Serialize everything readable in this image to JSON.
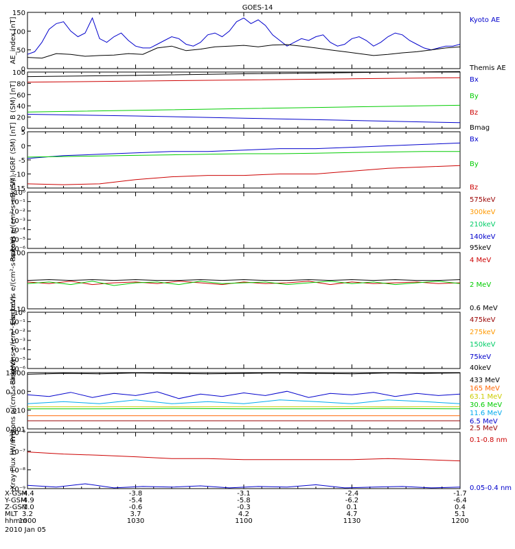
{
  "title": "GOES-14",
  "x_axis": {
    "tick_times": [
      "1000",
      "1030",
      "1100",
      "1130",
      "1200"
    ],
    "row_labels": [
      "X-GSM",
      "Y-GSM",
      "Z-GSM",
      "MLT",
      "hhmm"
    ],
    "rows": [
      [
        "-4.4",
        "-3.8",
        "-3.1",
        "-2.4",
        "-1.7"
      ],
      [
        "-4.9",
        "-5.4",
        "-5.8",
        "-6.2",
        "-6.4"
      ],
      [
        "-1.0",
        "-0.6",
        "-0.3",
        "0.1",
        "0.4"
      ],
      [
        "3.2",
        "3.7",
        "4.2",
        "4.7",
        "5.1"
      ],
      [
        "1000",
        "1030",
        "1100",
        "1130",
        "1200"
      ]
    ],
    "date": "2010 Jan 05"
  },
  "colors": {
    "black": "#000000",
    "blue": "#0000cc",
    "green": "#00cc00",
    "red": "#cc0000",
    "orange": "#ff9900",
    "cyan": "#00aaee",
    "darkred": "#990000",
    "yellow": "#cccc00"
  },
  "chart_data": [
    {
      "type": "line",
      "ylabel": "AE_index [nT]",
      "ylim": [
        0,
        150
      ],
      "yticks": [
        "0",
        "50",
        "100",
        "150"
      ],
      "ylog": false,
      "series": [
        {
          "name": "Kyoto AE",
          "color": "#0000cc",
          "x": [
            0,
            2,
            4,
            6,
            8,
            10,
            12,
            14,
            16,
            18,
            20,
            22,
            24,
            26,
            28,
            30,
            32,
            34,
            36,
            38,
            40,
            42,
            44,
            46,
            48,
            50,
            52,
            54,
            56,
            58,
            60,
            62,
            64,
            66,
            68,
            70,
            72,
            74,
            76,
            78,
            80,
            82,
            84,
            86,
            88,
            90,
            92,
            94,
            96,
            98,
            100,
            102,
            104,
            106,
            108,
            110,
            112,
            114,
            116,
            118,
            120
          ],
          "values": [
            38,
            45,
            70,
            105,
            120,
            125,
            100,
            85,
            95,
            135,
            80,
            70,
            85,
            95,
            75,
            60,
            55,
            55,
            65,
            75,
            85,
            80,
            65,
            60,
            70,
            90,
            95,
            85,
            100,
            125,
            135,
            120,
            130,
            115,
            90,
            75,
            60,
            70,
            80,
            75,
            85,
            90,
            70,
            60,
            65,
            80,
            85,
            75,
            60,
            70,
            85,
            95,
            90,
            75,
            65,
            55,
            50,
            55,
            60,
            60,
            65
          ]
        },
        {
          "name": "Themis AE",
          "color": "#000000",
          "x": [
            0,
            4,
            8,
            12,
            16,
            20,
            24,
            28,
            32,
            36,
            40,
            44,
            48,
            52,
            56,
            60,
            64,
            68,
            72,
            76,
            80,
            84,
            88,
            92,
            96,
            100,
            104,
            108,
            112,
            116,
            120
          ],
          "values": [
            30,
            28,
            40,
            38,
            33,
            35,
            36,
            40,
            38,
            55,
            60,
            48,
            52,
            58,
            60,
            62,
            58,
            63,
            64,
            60,
            55,
            50,
            45,
            40,
            35,
            38,
            42,
            45,
            50,
            55,
            58
          ]
        }
      ]
    },
    {
      "type": "line",
      "ylabel": "B (SM) [nT]",
      "ylim": [
        0,
        100
      ],
      "yticks": [
        "0",
        "20",
        "40",
        "60",
        "80",
        "100"
      ],
      "ylog": false,
      "series": [
        {
          "name": "Bx",
          "color": "#0000cc",
          "x": [
            0,
            30,
            60,
            90,
            120
          ],
          "values": [
            25,
            22,
            18,
            14,
            10
          ]
        },
        {
          "name": "By",
          "color": "#00cc00",
          "x": [
            0,
            30,
            60,
            90,
            120
          ],
          "values": [
            29,
            32,
            35,
            38,
            41
          ]
        },
        {
          "name": "Bz",
          "color": "#cc0000",
          "x": [
            0,
            30,
            60,
            90,
            120
          ],
          "values": [
            82,
            84,
            86,
            88,
            90
          ]
        },
        {
          "name": "Bmag",
          "color": "#000000",
          "x": [
            0,
            30,
            60,
            90,
            120
          ],
          "values": [
            92,
            94,
            97,
            99,
            101
          ]
        }
      ]
    },
    {
      "type": "line",
      "ylabel": "B (SM)-IGRF (SM) [nT]",
      "ylim": [
        -15,
        5
      ],
      "yticks": [
        "-15",
        "-10",
        "-5",
        "0",
        "5"
      ],
      "ylog": false,
      "series": [
        {
          "name": "Bx",
          "color": "#0000cc",
          "x": [
            0,
            10,
            20,
            30,
            40,
            50,
            60,
            70,
            80,
            90,
            100,
            110,
            120
          ],
          "values": [
            -4.5,
            -3.5,
            -3,
            -2.5,
            -2,
            -2,
            -1.5,
            -1,
            -1,
            -0.5,
            0,
            0.5,
            1
          ]
        },
        {
          "name": "By",
          "color": "#00cc00",
          "x": [
            0,
            10,
            20,
            30,
            40,
            50,
            60,
            70,
            80,
            90,
            100,
            110,
            120
          ],
          "values": [
            -4,
            -3.8,
            -3.6,
            -3.4,
            -3.2,
            -3,
            -2.8,
            -2.8,
            -2.6,
            -2.4,
            -2.2,
            -2,
            -2
          ]
        },
        {
          "name": "Bz",
          "color": "#cc0000",
          "x": [
            0,
            10,
            20,
            30,
            40,
            50,
            60,
            70,
            80,
            90,
            100,
            110,
            120
          ],
          "values": [
            -13.5,
            -13.8,
            -13.5,
            -12,
            -11,
            -10.5,
            -10.5,
            -10,
            -10,
            -9,
            -8,
            -7.5,
            -7
          ]
        }
      ]
    },
    {
      "type": "line",
      "ylabel": "Protons p/(cm²-s-sr-keV)",
      "ylim": [
        -6,
        0
      ],
      "yticks": [
        "10⁻⁶",
        "10⁻⁵",
        "10⁻⁴",
        "10⁻³",
        "10⁻²",
        "10⁻¹",
        "10⁰"
      ],
      "ylog": true,
      "series": [
        {
          "name": "575keV",
          "color": "#990000",
          "x": [],
          "values": []
        },
        {
          "name": "300keV",
          "color": "#ff9900",
          "x": [],
          "values": []
        },
        {
          "name": "210keV",
          "color": "#00cc66",
          "x": [],
          "values": []
        },
        {
          "name": "140keV",
          "color": "#0000cc",
          "x": [],
          "values": []
        },
        {
          "name": "95keV",
          "color": "#000000",
          "x": [],
          "values": []
        }
      ]
    },
    {
      "type": "line",
      "ylabel": "Electrons e/(cm²-s-sr-keV)",
      "ylim": [
        1,
        2
      ],
      "yticks": [
        "10",
        "100"
      ],
      "ylog": true,
      "series": [
        {
          "name": "4 MeV",
          "color": "#cc0000",
          "x": [
            0,
            6,
            12,
            18,
            24,
            30,
            36,
            42,
            48,
            54,
            60,
            66,
            72,
            78,
            84,
            90,
            96,
            102,
            108,
            114,
            120
          ],
          "values": [
            30,
            28,
            31,
            27,
            29,
            30,
            28,
            31,
            29,
            27,
            30,
            28,
            29,
            31,
            27,
            30,
            28,
            29,
            30,
            28,
            29
          ]
        },
        {
          "name": "2 MeV",
          "color": "#00cc00",
          "x": [
            0,
            6,
            12,
            18,
            24,
            30,
            36,
            42,
            48,
            54,
            60,
            66,
            72,
            78,
            84,
            90,
            96,
            102,
            108,
            114,
            120
          ],
          "values": [
            28,
            30,
            27,
            31,
            26,
            29,
            30,
            27,
            31,
            28,
            29,
            30,
            27,
            29,
            31,
            28,
            30,
            27,
            29,
            31,
            28
          ]
        },
        {
          "name": "0.6 MeV",
          "color": "#000000",
          "x": [
            0,
            6,
            12,
            18,
            24,
            30,
            36,
            42,
            48,
            54,
            60,
            66,
            72,
            78,
            84,
            90,
            96,
            102,
            108,
            114,
            120
          ],
          "values": [
            32,
            33,
            32,
            33,
            32,
            33,
            32,
            32,
            33,
            32,
            33,
            32,
            32,
            33,
            32,
            33,
            32,
            33,
            32,
            32,
            33
          ]
        }
      ]
    },
    {
      "type": "line",
      "ylabel": "Electrons e/(cm²-s-sr-keV)",
      "ylim": [
        -6,
        0
      ],
      "yticks": [
        "10⁻⁶",
        "10⁻⁵",
        "10⁻⁴",
        "10⁻³",
        "10⁻²",
        "10⁻¹",
        "10⁰"
      ],
      "ylog": true,
      "series": [
        {
          "name": "475keV",
          "color": "#990000",
          "x": [],
          "values": []
        },
        {
          "name": "275keV",
          "color": "#ff9900",
          "x": [],
          "values": []
        },
        {
          "name": "150keV",
          "color": "#00cc66",
          "x": [],
          "values": []
        },
        {
          "name": "75keV",
          "color": "#0000cc",
          "x": [],
          "values": []
        },
        {
          "name": "40keV",
          "color": "#000000",
          "x": [],
          "values": []
        }
      ]
    },
    {
      "type": "line",
      "ylabel": "Protons p/(cm²-s-sr-keV)",
      "ylim": [
        -3,
        0.3
      ],
      "yticks": [
        "0.001",
        "0.010",
        "0.100",
        "1.000"
      ],
      "ylog": true,
      "series": [
        {
          "name": "433 MeV",
          "color": "#000000",
          "x": [
            0,
            10,
            20,
            30,
            40,
            50,
            60,
            70,
            80,
            90,
            100,
            110,
            120
          ],
          "values": [
            1.6,
            1.8,
            1.7,
            1.9,
            1.8,
            1.7,
            1.8,
            1.9,
            1.8,
            1.7,
            1.9,
            1.8,
            1.9
          ]
        },
        {
          "name": "165 MeV",
          "color": "#ff6600",
          "x": [
            0,
            20,
            40,
            60,
            80,
            100,
            120
          ],
          "values": [
            0.006,
            0.006,
            0.006,
            0.006,
            0.006,
            0.006,
            0.006
          ]
        },
        {
          "name": "63.1 MeV",
          "color": "#cccc00",
          "x": [
            0,
            20,
            40,
            60,
            80,
            100,
            120
          ],
          "values": [
            0.02,
            0.02,
            0.02,
            0.02,
            0.02,
            0.02,
            0.02
          ]
        },
        {
          "name": "30.6 MeV",
          "color": "#00cc00",
          "x": [
            0,
            20,
            40,
            60,
            80,
            100,
            120
          ],
          "values": [
            0.015,
            0.015,
            0.016,
            0.015,
            0.015,
            0.016,
            0.015
          ]
        },
        {
          "name": "11.6 MeV",
          "color": "#00aaee",
          "x": [
            0,
            10,
            20,
            30,
            40,
            50,
            60,
            70,
            80,
            90,
            100,
            110,
            120
          ],
          "values": [
            0.03,
            0.04,
            0.03,
            0.05,
            0.03,
            0.04,
            0.03,
            0.05,
            0.04,
            0.03,
            0.05,
            0.04,
            0.03
          ]
        },
        {
          "name": "6.5 MeV",
          "color": "#0000cc",
          "x": [
            0,
            6,
            12,
            18,
            24,
            30,
            36,
            42,
            48,
            54,
            60,
            66,
            72,
            78,
            84,
            90,
            96,
            102,
            108,
            114,
            120
          ],
          "values": [
            0.1,
            0.08,
            0.14,
            0.07,
            0.12,
            0.09,
            0.15,
            0.06,
            0.11,
            0.08,
            0.13,
            0.09,
            0.16,
            0.07,
            0.12,
            0.1,
            0.14,
            0.08,
            0.12,
            0.09,
            0.11
          ]
        },
        {
          "name": "2.5 MeV",
          "color": "#990000",
          "x": [
            0,
            20,
            40,
            60,
            80,
            100,
            120
          ],
          "values": [
            0.003,
            0.003,
            0.003,
            0.003,
            0.003,
            0.003,
            0.003
          ]
        }
      ]
    },
    {
      "type": "line",
      "ylabel": "Xray Flux [W/m²]",
      "ylim": [
        -9,
        -6
      ],
      "yticks": [
        "10⁻⁹",
        "10⁻⁸",
        "10⁻⁷",
        "10⁻⁶"
      ],
      "ylog": true,
      "series": [
        {
          "name": "0.1-0.8 nm",
          "color": "#cc0000",
          "x": [
            0,
            10,
            20,
            30,
            40,
            50,
            60,
            70,
            80,
            90,
            100,
            110,
            120
          ],
          "values": [
            9e-08,
            7e-08,
            6e-08,
            5e-08,
            4e-08,
            4e-08,
            3.5e-08,
            3.5e-08,
            3.5e-08,
            3.5e-08,
            4e-08,
            3.5e-08,
            3e-08
          ]
        },
        {
          "name": "0.05-0.4 nm",
          "color": "#0000cc",
          "x": [
            0,
            8,
            16,
            24,
            32,
            40,
            48,
            56,
            64,
            72,
            80,
            88,
            96,
            104,
            112,
            120
          ],
          "values": [
            1.5e-09,
            1.2e-09,
            1.8e-09,
            1.1e-09,
            1.3e-09,
            1.2e-09,
            1.4e-09,
            1.1e-09,
            1.3e-09,
            1.2e-09,
            1.6e-09,
            1.1e-09,
            1.2e-09,
            1.3e-09,
            1.1e-09,
            1.2e-09
          ]
        }
      ]
    }
  ]
}
